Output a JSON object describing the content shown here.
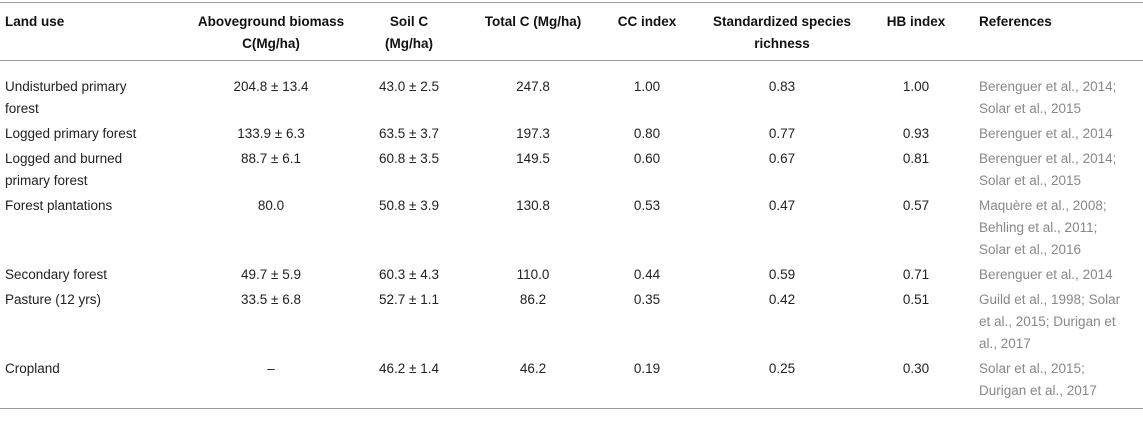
{
  "table": {
    "header": [
      "Land use",
      "Aboveground biomass C(Mg/ha)",
      "Soil C (Mg/ha)",
      "Total C (Mg/ha)",
      "CC index",
      "Standardized species richness",
      "HB index",
      "References"
    ],
    "rows": [
      [
        "Undisturbed primary forest",
        "204.8 ± 13.4",
        "43.0 ± 2.5",
        "247.8",
        "1.00",
        "0.83",
        "1.00",
        "Berenguer et al., 2014; Solar et al., 2015"
      ],
      [
        "Logged primary forest",
        "133.9 ± 6.3",
        "63.5 ± 3.7",
        "197.3",
        "0.80",
        "0.77",
        "0.93",
        "Berenguer et al., 2014"
      ],
      [
        "Logged and burned primary forest",
        "88.7 ± 6.1",
        "60.8 ± 3.5",
        "149.5",
        "0.60",
        "0.67",
        "0.81",
        "Berenguer et al., 2014; Solar et al., 2015"
      ],
      [
        "Forest plantations",
        "80.0",
        "50.8 ± 3.9",
        "130.8",
        "0.53",
        "0.47",
        "0.57",
        "Maquère et al., 2008; Behling et al., 2011; Solar et al., 2016"
      ],
      [
        "Secondary forest",
        "49.7 ± 5.9",
        "60.3 ± 4.3",
        "110.0",
        "0.44",
        "0.59",
        "0.71",
        "Berenguer et al., 2014"
      ],
      [
        "Pasture (12 yrs)",
        "33.5 ± 6.8",
        "52.7 ± 1.1",
        "86.2",
        "0.35",
        "0.42",
        "0.51",
        "Guild et al., 1998; Solar et al., 2015; Durigan et al., 2017"
      ],
      [
        "Cropland",
        "–",
        "46.2 ± 1.4",
        "46.2",
        "0.19",
        "0.25",
        "0.30",
        "Solar et al., 2015; Durigan et al., 2017"
      ]
    ]
  }
}
